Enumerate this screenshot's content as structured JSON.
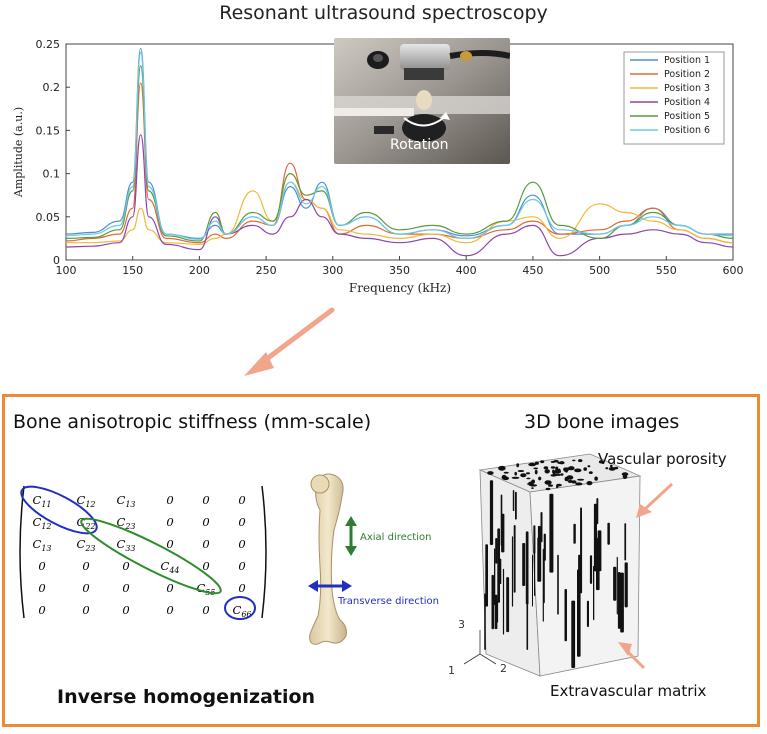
{
  "top_title": "Resonant ultrasound spectroscopy",
  "chart_data": {
    "type": "line",
    "xlabel": "Frequency (kHz)",
    "ylabel": "Amplitude (a.u.)",
    "xlim": [
      100,
      600
    ],
    "ylim": [
      0,
      0.25
    ],
    "xticks": [
      "100",
      "150",
      "200",
      "250",
      "300",
      "350",
      "400",
      "450",
      "500",
      "550",
      "600"
    ],
    "yticks": [
      "0",
      "0.05",
      "0.1",
      "0.15",
      "0.2",
      "0.25"
    ],
    "legend_position": "top-right",
    "grid": false,
    "series": [
      {
        "name": "Position 1",
        "color": "#4f8fd0",
        "x": [
          100,
          120,
          140,
          150,
          156,
          162,
          175,
          200,
          212,
          220,
          240,
          255,
          268,
          280,
          292,
          305,
          325,
          350,
          375,
          400,
          430,
          450,
          470,
          500,
          520,
          540,
          560,
          580,
          600
        ],
        "y": [
          0.03,
          0.032,
          0.045,
          0.09,
          0.245,
          0.09,
          0.03,
          0.025,
          0.04,
          0.03,
          0.05,
          0.04,
          0.085,
          0.06,
          0.09,
          0.04,
          0.05,
          0.03,
          0.035,
          0.028,
          0.04,
          0.075,
          0.03,
          0.03,
          0.04,
          0.06,
          0.04,
          0.03,
          0.03
        ]
      },
      {
        "name": "Position 2",
        "color": "#e06a35",
        "x": [
          100,
          120,
          140,
          150,
          156,
          162,
          175,
          200,
          212,
          220,
          240,
          255,
          268,
          280,
          292,
          305,
          325,
          350,
          375,
          400,
          430,
          450,
          470,
          500,
          520,
          540,
          560,
          580,
          600
        ],
        "y": [
          0.022,
          0.025,
          0.03,
          0.06,
          0.205,
          0.07,
          0.025,
          0.02,
          0.03,
          0.025,
          0.045,
          0.04,
          0.112,
          0.07,
          0.06,
          0.03,
          0.04,
          0.03,
          0.03,
          0.025,
          0.035,
          0.045,
          0.03,
          0.035,
          0.045,
          0.06,
          0.035,
          0.025,
          0.02
        ]
      },
      {
        "name": "Position 3",
        "color": "#f0b93a",
        "x": [
          100,
          120,
          140,
          150,
          156,
          162,
          175,
          200,
          212,
          220,
          240,
          255,
          268,
          280,
          292,
          305,
          325,
          350,
          375,
          400,
          430,
          450,
          470,
          500,
          520,
          540,
          560,
          580,
          600
        ],
        "y": [
          0.02,
          0.02,
          0.022,
          0.035,
          0.06,
          0.035,
          0.02,
          0.018,
          0.025,
          0.03,
          0.08,
          0.045,
          0.09,
          0.07,
          0.06,
          0.035,
          0.03,
          0.025,
          0.03,
          0.02,
          0.045,
          0.05,
          0.025,
          0.065,
          0.055,
          0.045,
          0.035,
          0.025,
          0.02
        ]
      },
      {
        "name": "Position 4",
        "color": "#8e44ad",
        "x": [
          100,
          120,
          140,
          150,
          156,
          162,
          175,
          200,
          212,
          220,
          240,
          255,
          268,
          280,
          292,
          305,
          325,
          350,
          375,
          400,
          430,
          450,
          470,
          500,
          520,
          540,
          560,
          580,
          600
        ],
        "y": [
          0.015,
          0.016,
          0.02,
          0.05,
          0.145,
          0.05,
          0.018,
          0.012,
          0.05,
          0.03,
          0.04,
          0.03,
          0.05,
          0.07,
          0.05,
          0.03,
          0.025,
          0.02,
          0.025,
          0.005,
          0.03,
          0.04,
          0.005,
          0.025,
          0.03,
          0.035,
          0.03,
          0.02,
          0.015
        ]
      },
      {
        "name": "Position 5",
        "color": "#5a9a3a",
        "x": [
          100,
          120,
          140,
          150,
          156,
          162,
          175,
          200,
          212,
          220,
          240,
          255,
          268,
          280,
          292,
          305,
          325,
          350,
          375,
          400,
          430,
          450,
          470,
          500,
          520,
          540,
          560,
          580,
          600
        ],
        "y": [
          0.025,
          0.026,
          0.035,
          0.08,
          0.225,
          0.08,
          0.028,
          0.022,
          0.055,
          0.03,
          0.055,
          0.045,
          0.1,
          0.075,
          0.08,
          0.04,
          0.055,
          0.035,
          0.04,
          0.03,
          0.045,
          0.09,
          0.04,
          0.025,
          0.04,
          0.055,
          0.04,
          0.03,
          0.025
        ]
      },
      {
        "name": "Position 6",
        "color": "#6ec8e8",
        "x": [
          100,
          120,
          140,
          150,
          156,
          162,
          175,
          200,
          212,
          220,
          240,
          255,
          268,
          280,
          292,
          305,
          325,
          350,
          375,
          400,
          430,
          450,
          470,
          500,
          520,
          540,
          560,
          580,
          600
        ],
        "y": [
          0.028,
          0.03,
          0.04,
          0.085,
          0.24,
          0.085,
          0.03,
          0.024,
          0.045,
          0.03,
          0.05,
          0.04,
          0.09,
          0.065,
          0.085,
          0.04,
          0.05,
          0.03,
          0.035,
          0.025,
          0.04,
          0.07,
          0.035,
          0.03,
          0.04,
          0.05,
          0.04,
          0.03,
          0.028
        ]
      }
    ]
  },
  "photo": {
    "caption": "Rotation"
  },
  "stiffness": {
    "title": "Bone anisotropic stiffness (mm-scale)",
    "matrix": [
      [
        "C11",
        "C12",
        "C13",
        "0",
        "0",
        "0"
      ],
      [
        "C12",
        "C22",
        "C23",
        "0",
        "0",
        "0"
      ],
      [
        "C13",
        "C23",
        "C33",
        "0",
        "0",
        "0"
      ],
      [
        "0",
        "0",
        "0",
        "C44",
        "0",
        "0"
      ],
      [
        "0",
        "0",
        "0",
        "0",
        "C55",
        "0"
      ],
      [
        "0",
        "0",
        "0",
        "0",
        "0",
        "C66"
      ]
    ]
  },
  "bone": {
    "axial_label": "Axial direction",
    "transverse_label": "Transverse direction"
  },
  "images3d": {
    "title": "3D bone images",
    "vascular_label": "Vascular porosity",
    "matrix_label": "Extravascular matrix",
    "axis_labels": [
      "1",
      "2",
      "3"
    ]
  },
  "inverse_title": "Inverse homogenization",
  "colors": {
    "accent": "#ed8a36",
    "axial": "#2e7d32",
    "transverse": "#1f2fbf",
    "ellipse_blue": "#1f2fbf",
    "ellipse_green": "#2e8b2e"
  }
}
